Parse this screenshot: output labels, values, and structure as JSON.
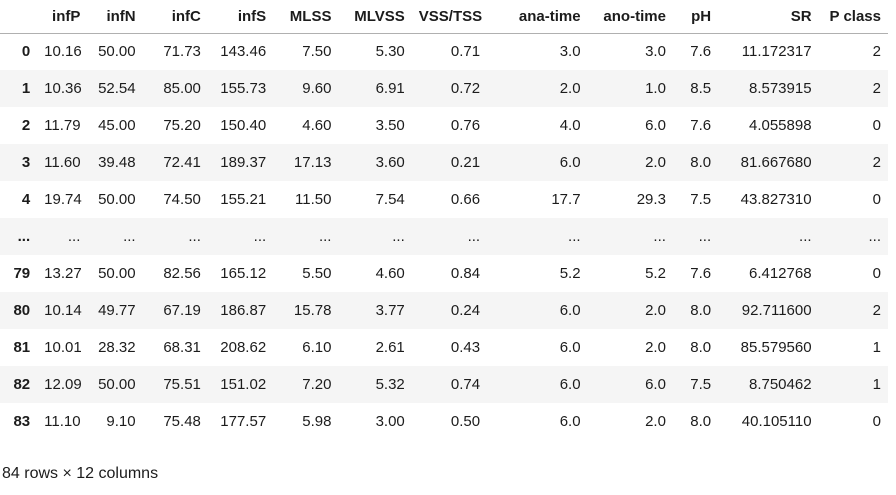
{
  "table": {
    "columns": [
      "",
      "infP",
      "infN",
      "infC",
      "infS",
      "MLSS",
      "MLVSS",
      "VSS/TSS",
      "ana-time",
      "ano-time",
      "pH",
      "SR",
      "P class"
    ],
    "rows": [
      [
        "0",
        "10.16",
        "50.00",
        "71.73",
        "143.46",
        "7.50",
        "5.30",
        "0.71",
        "3.0",
        "3.0",
        "7.6",
        "11.172317",
        "2"
      ],
      [
        "1",
        "10.36",
        "52.54",
        "85.00",
        "155.73",
        "9.60",
        "6.91",
        "0.72",
        "2.0",
        "1.0",
        "8.5",
        "8.573915",
        "2"
      ],
      [
        "2",
        "11.79",
        "45.00",
        "75.20",
        "150.40",
        "4.60",
        "3.50",
        "0.76",
        "4.0",
        "6.0",
        "7.6",
        "4.055898",
        "0"
      ],
      [
        "3",
        "11.60",
        "39.48",
        "72.41",
        "189.37",
        "17.13",
        "3.60",
        "0.21",
        "6.0",
        "2.0",
        "8.0",
        "81.667680",
        "2"
      ],
      [
        "4",
        "19.74",
        "50.00",
        "74.50",
        "155.21",
        "11.50",
        "7.54",
        "0.66",
        "17.7",
        "29.3",
        "7.5",
        "43.827310",
        "0"
      ],
      [
        "...",
        "...",
        "...",
        "...",
        "...",
        "...",
        "...",
        "...",
        "...",
        "...",
        "...",
        "...",
        "..."
      ],
      [
        "79",
        "13.27",
        "50.00",
        "82.56",
        "165.12",
        "5.50",
        "4.60",
        "0.84",
        "5.2",
        "5.2",
        "7.6",
        "6.412768",
        "0"
      ],
      [
        "80",
        "10.14",
        "49.77",
        "67.19",
        "186.87",
        "15.78",
        "3.77",
        "0.24",
        "6.0",
        "2.0",
        "8.0",
        "92.711600",
        "2"
      ],
      [
        "81",
        "10.01",
        "28.32",
        "68.31",
        "208.62",
        "6.10",
        "2.61",
        "0.43",
        "6.0",
        "2.0",
        "8.0",
        "85.579560",
        "1"
      ],
      [
        "82",
        "12.09",
        "50.00",
        "75.51",
        "151.02",
        "7.20",
        "5.32",
        "0.74",
        "6.0",
        "6.0",
        "7.5",
        "8.750462",
        "1"
      ],
      [
        "83",
        "11.10",
        "9.10",
        "75.48",
        "177.57",
        "5.98",
        "3.00",
        "0.50",
        "6.0",
        "2.0",
        "8.0",
        "40.105110",
        "0"
      ]
    ]
  },
  "footer": {
    "shape": "84 rows × 12 columns"
  },
  "colors": {
    "stripe_row": "#f5f5f5",
    "header_border": "#b0b0b0",
    "text": "#1c1c1c",
    "background": "#ffffff"
  }
}
